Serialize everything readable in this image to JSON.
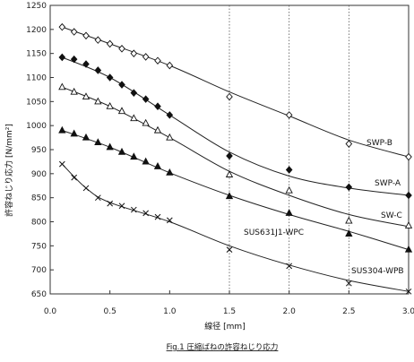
{
  "chart_data": {
    "type": "scatter",
    "title": "Fig.1 圧縮ばねの許容ねじり応力",
    "xlabel": "線径 [mm]",
    "ylabel": "許容ねじり応力 [N/mm²]",
    "xlim": [
      0.0,
      3.0
    ],
    "ylim": [
      650,
      1250
    ],
    "x_ticks": [
      "0.0",
      "0.5",
      "1.0",
      "1.5",
      "2.0",
      "2.5",
      "3.0"
    ],
    "y_ticks": [
      "650",
      "700",
      "750",
      "800",
      "850",
      "900",
      "950",
      "1000",
      "1050",
      "1100",
      "1150",
      "1200",
      "1250"
    ],
    "grid": "dotted vertical lines at x = 1.5, 2.0, 2.5",
    "series": [
      {
        "name": "SWP-B",
        "marker": "open-diamond",
        "points": [
          [
            0.1,
            1205
          ],
          [
            0.2,
            1195
          ],
          [
            0.3,
            1187
          ],
          [
            0.4,
            1178
          ],
          [
            0.5,
            1170
          ],
          [
            0.6,
            1160
          ],
          [
            0.7,
            1150
          ],
          [
            0.8,
            1143
          ],
          [
            0.9,
            1135
          ],
          [
            1.0,
            1125
          ],
          [
            1.5,
            1060
          ],
          [
            2.0,
            1022
          ],
          [
            2.5,
            962
          ],
          [
            3.0,
            935
          ]
        ],
        "curve": [
          [
            0.1,
            1205
          ],
          [
            0.5,
            1170
          ],
          [
            1.0,
            1125
          ],
          [
            1.5,
            1070
          ],
          [
            2.0,
            1020
          ],
          [
            2.5,
            970
          ],
          [
            3.0,
            935
          ]
        ]
      },
      {
        "name": "SWP-A",
        "marker": "filled-diamond",
        "points": [
          [
            0.1,
            1142
          ],
          [
            0.2,
            1138
          ],
          [
            0.3,
            1128
          ],
          [
            0.4,
            1115
          ],
          [
            0.5,
            1100
          ],
          [
            0.6,
            1085
          ],
          [
            0.7,
            1068
          ],
          [
            0.8,
            1055
          ],
          [
            0.9,
            1040
          ],
          [
            1.0,
            1022
          ],
          [
            1.5,
            937
          ],
          [
            2.0,
            908
          ],
          [
            2.5,
            872
          ],
          [
            3.0,
            855
          ]
        ],
        "curve": [
          [
            0.1,
            1142
          ],
          [
            0.5,
            1100
          ],
          [
            1.0,
            1022
          ],
          [
            1.5,
            945
          ],
          [
            2.0,
            895
          ],
          [
            2.5,
            870
          ],
          [
            3.0,
            855
          ]
        ]
      },
      {
        "name": "SW-C",
        "marker": "open-triangle",
        "points": [
          [
            0.1,
            1080
          ],
          [
            0.2,
            1070
          ],
          [
            0.3,
            1060
          ],
          [
            0.4,
            1050
          ],
          [
            0.5,
            1040
          ],
          [
            0.6,
            1030
          ],
          [
            0.7,
            1015
          ],
          [
            0.8,
            1005
          ],
          [
            0.9,
            990
          ],
          [
            1.0,
            975
          ],
          [
            1.5,
            898
          ],
          [
            2.0,
            865
          ],
          [
            2.5,
            802
          ],
          [
            3.0,
            792
          ]
        ],
        "curve": [
          [
            0.1,
            1080
          ],
          [
            0.5,
            1040
          ],
          [
            1.0,
            975
          ],
          [
            1.5,
            905
          ],
          [
            2.0,
            855
          ],
          [
            2.5,
            815
          ],
          [
            3.0,
            790
          ]
        ]
      },
      {
        "name": "SUS631J1-WPC",
        "marker": "filled-triangle",
        "points": [
          [
            0.1,
            990
          ],
          [
            0.2,
            983
          ],
          [
            0.3,
            975
          ],
          [
            0.4,
            965
          ],
          [
            0.5,
            955
          ],
          [
            0.6,
            945
          ],
          [
            0.7,
            935
          ],
          [
            0.8,
            925
          ],
          [
            0.9,
            915
          ],
          [
            1.0,
            902
          ],
          [
            1.5,
            853
          ],
          [
            2.0,
            818
          ],
          [
            2.5,
            775
          ],
          [
            3.0,
            742
          ]
        ],
        "curve": [
          [
            0.1,
            990
          ],
          [
            0.5,
            955
          ],
          [
            1.0,
            902
          ],
          [
            1.5,
            855
          ],
          [
            2.0,
            815
          ],
          [
            2.5,
            780
          ],
          [
            3.0,
            742
          ]
        ]
      },
      {
        "name": "SUS304-WPB",
        "marker": "x",
        "points": [
          [
            0.1,
            920
          ],
          [
            0.2,
            892
          ],
          [
            0.3,
            870
          ],
          [
            0.4,
            850
          ],
          [
            0.5,
            838
          ],
          [
            0.6,
            833
          ],
          [
            0.7,
            825
          ],
          [
            0.8,
            818
          ],
          [
            0.9,
            810
          ],
          [
            1.0,
            803
          ],
          [
            1.5,
            742
          ],
          [
            2.0,
            708
          ],
          [
            2.5,
            672
          ],
          [
            3.0,
            655
          ]
        ],
        "curve": [
          [
            0.1,
            920
          ],
          [
            0.3,
            870
          ],
          [
            0.5,
            840
          ],
          [
            1.0,
            800
          ],
          [
            1.5,
            750
          ],
          [
            2.0,
            710
          ],
          [
            2.5,
            678
          ],
          [
            3.0,
            655
          ]
        ]
      }
    ]
  }
}
